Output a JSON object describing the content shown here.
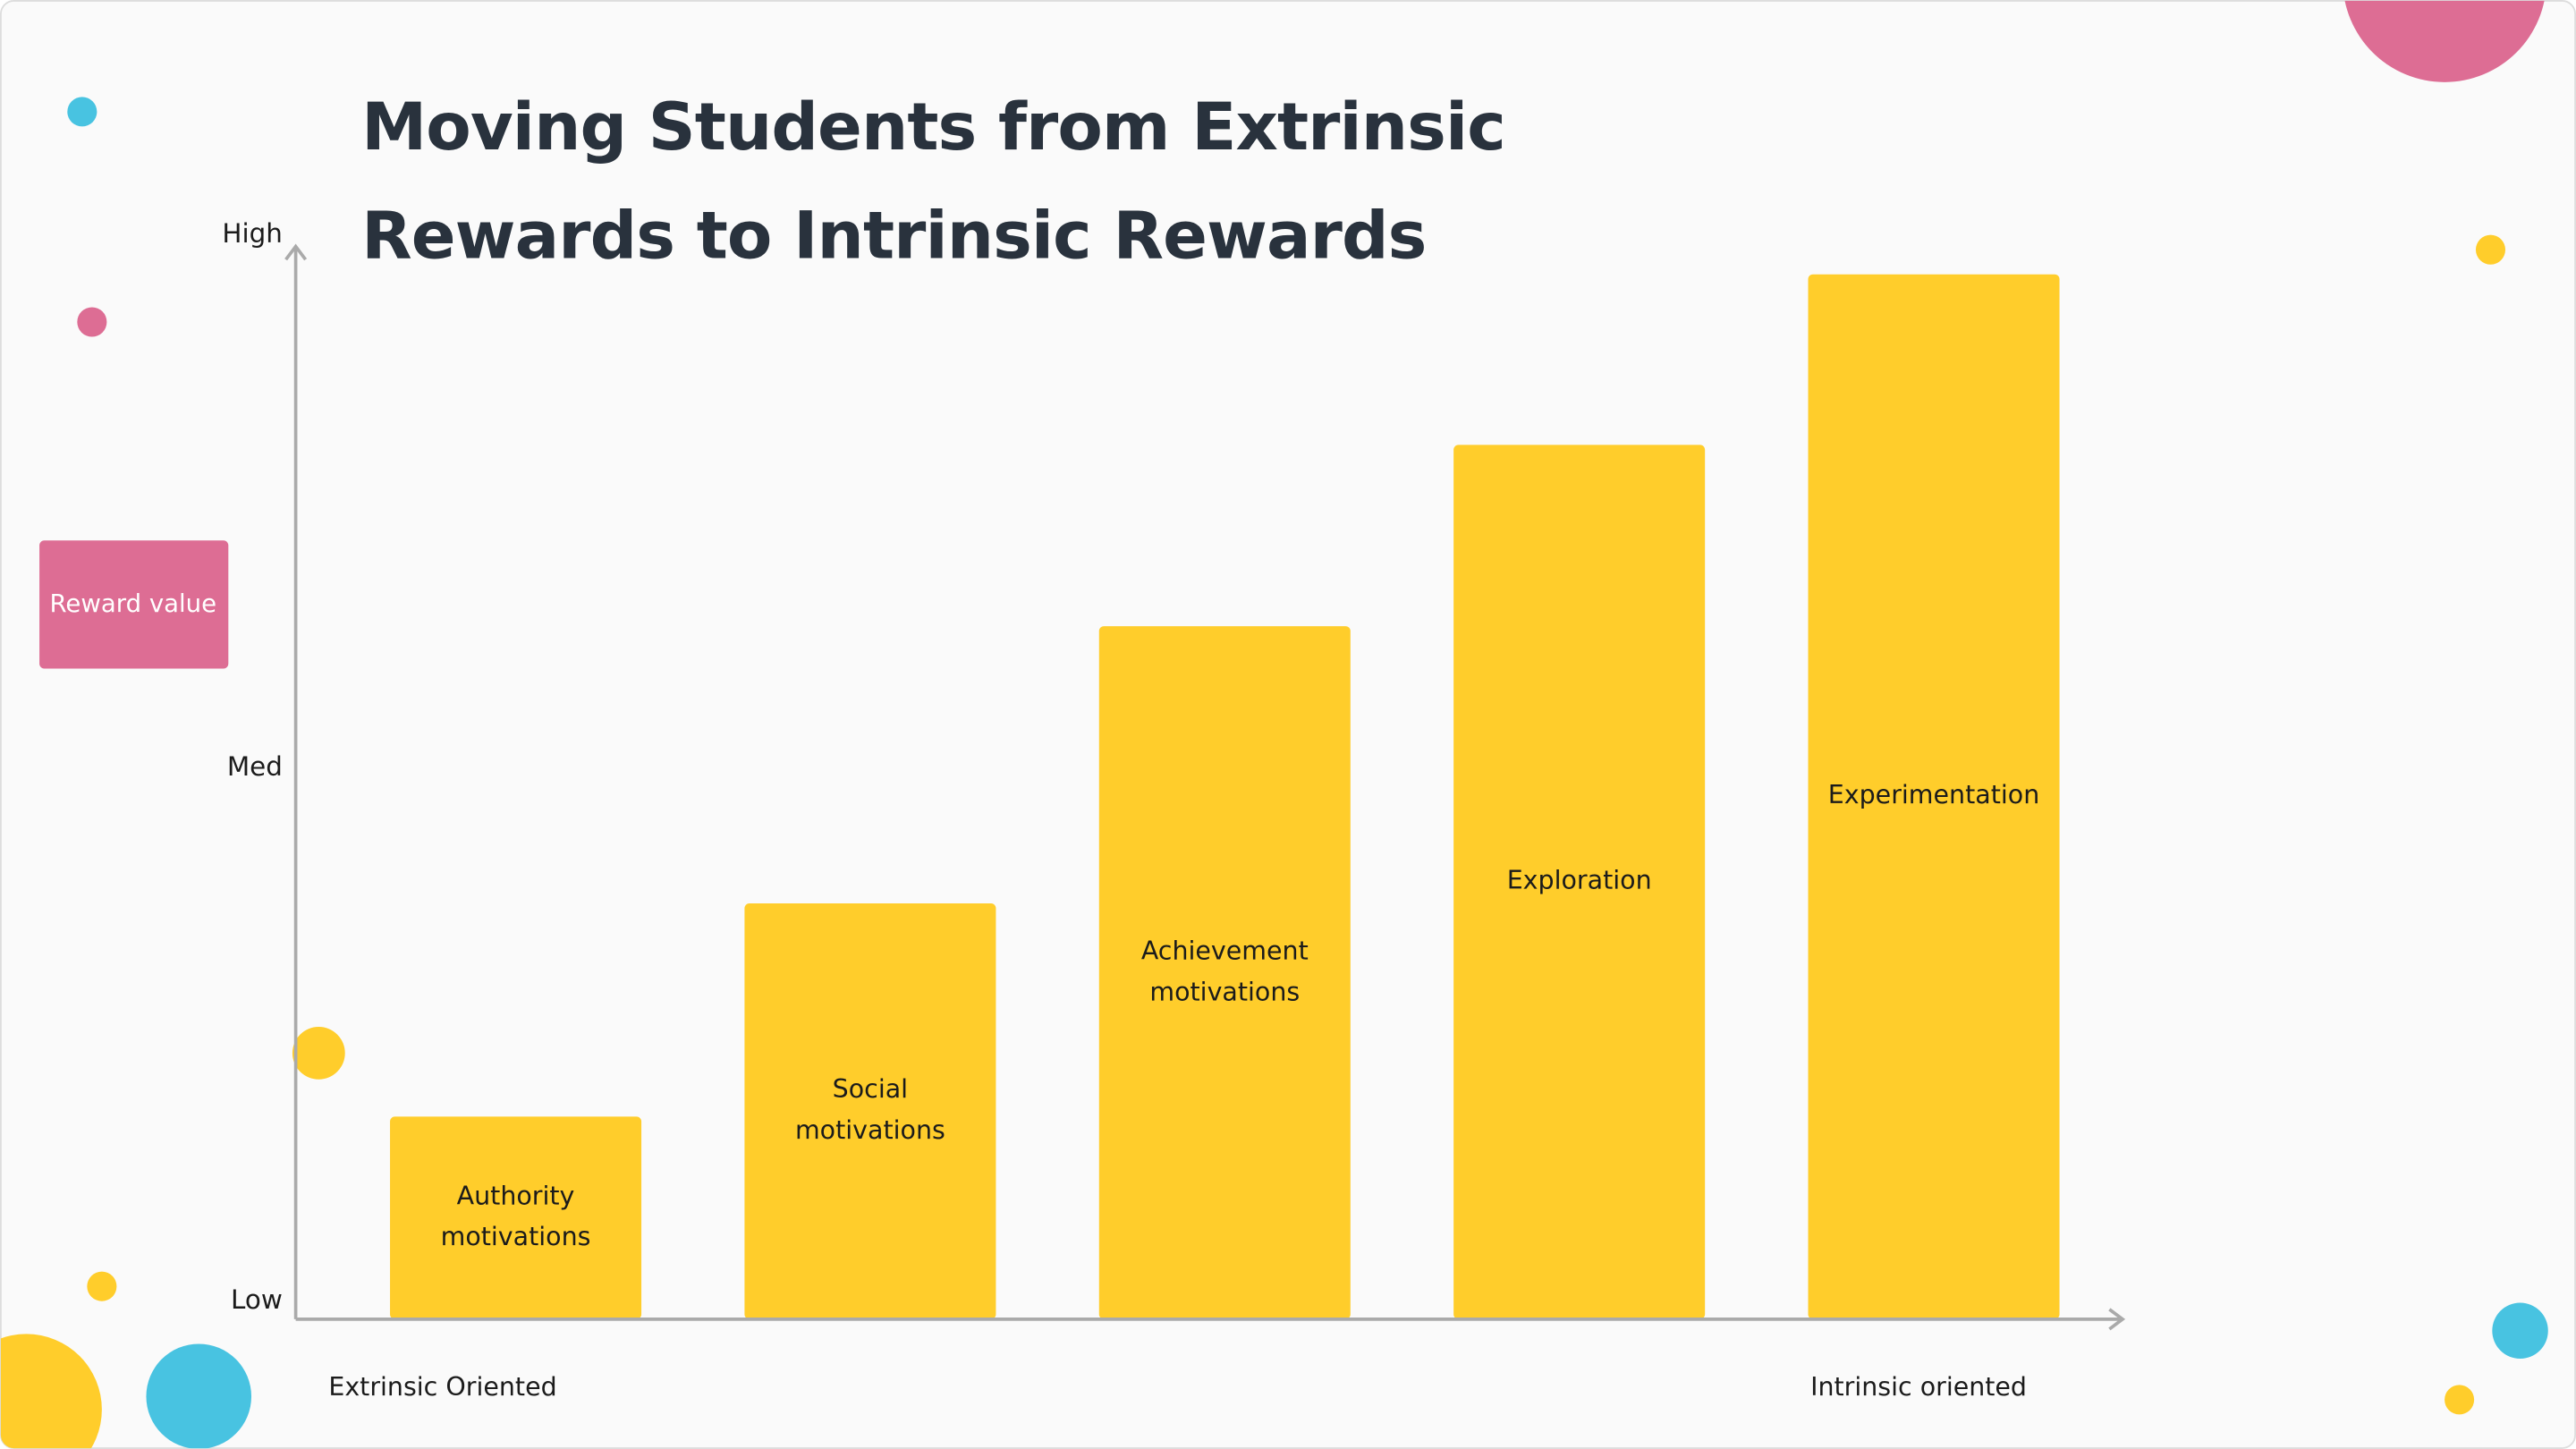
{
  "chart_data": {
    "type": "bar",
    "title": "Moving Students from Extrinsic Rewards to Intrinsic Rewards",
    "y_label": "Reward value",
    "x_label_left": "Extrinsic Oriented",
    "x_label_right": "Intrinsic oriented",
    "categories": [
      "Authority motivations",
      "Social motivations",
      "Achievement motivations",
      "Exploration",
      "Experimentation"
    ],
    "values": [
      19,
      39,
      65,
      82,
      98
    ],
    "color": "#ffcd2b",
    "ylim": [
      0,
      100
    ],
    "yticks": [
      {
        "value": 0,
        "label": "Low"
      },
      {
        "value": 50,
        "label": "Med"
      },
      {
        "value": 100,
        "label": "High"
      }
    ],
    "grid": false
  }
}
